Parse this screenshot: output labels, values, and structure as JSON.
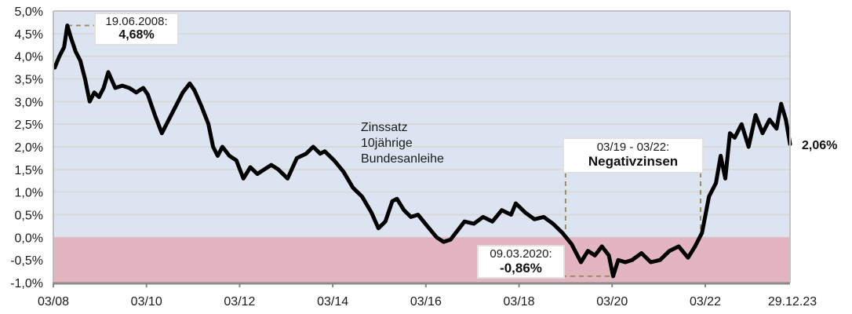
{
  "chart_data": {
    "type": "line",
    "title": "",
    "series_label": [
      "Zinssatz",
      "10jährige",
      "Bundesanleihe"
    ],
    "xlabel": "",
    "ylabel": "",
    "ylim": [
      -1.0,
      5.0
    ],
    "yticks": [
      "5,0%",
      "4,5%",
      "4,0%",
      "3,5%",
      "3,0%",
      "2,5%",
      "2,0%",
      "1,5%",
      "1,0%",
      "0,5%",
      "0,0%",
      "-0,5%",
      "-1,0%"
    ],
    "xticks": [
      "03/08",
      "03/10",
      "03/12",
      "03/14",
      "03/16",
      "03/18",
      "03/20",
      "03/22",
      "29.12.23"
    ],
    "grid": true,
    "negative_zone": {
      "from": 0.0,
      "to": -1.0,
      "color": "#e3b5c0"
    },
    "positive_zone_color": "#dbe4f0",
    "series": [
      {
        "name": "Zinssatz 10jährige Bundesanleihe",
        "color": "#000000",
        "x": [
          2008.2,
          2008.3,
          2008.4,
          2008.47,
          2008.55,
          2008.65,
          2008.75,
          2008.85,
          2008.95,
          2009.05,
          2009.15,
          2009.25,
          2009.35,
          2009.5,
          2009.65,
          2009.8,
          2009.95,
          2010.1,
          2010.2,
          2010.35,
          2010.5,
          2010.65,
          2010.8,
          2010.95,
          2011.1,
          2011.2,
          2011.35,
          2011.5,
          2011.6,
          2011.7,
          2011.8,
          2011.95,
          2012.1,
          2012.25,
          2012.4,
          2012.55,
          2012.7,
          2012.85,
          2013.0,
          2013.2,
          2013.4,
          2013.6,
          2013.75,
          2013.9,
          2014.0,
          2014.2,
          2014.4,
          2014.6,
          2014.8,
          2015.0,
          2015.15,
          2015.3,
          2015.45,
          2015.55,
          2015.7,
          2015.85,
          2016.0,
          2016.2,
          2016.4,
          2016.55,
          2016.7,
          2016.85,
          2017.0,
          2017.2,
          2017.4,
          2017.6,
          2017.8,
          2018.0,
          2018.1,
          2018.3,
          2018.5,
          2018.7,
          2018.9,
          2019.1,
          2019.3,
          2019.5,
          2019.65,
          2019.8,
          2019.95,
          2020.1,
          2020.19,
          2020.3,
          2020.45,
          2020.6,
          2020.8,
          2021.0,
          2021.2,
          2021.4,
          2021.6,
          2021.8,
          2021.95,
          2022.1,
          2022.25,
          2022.4,
          2022.5,
          2022.6,
          2022.7,
          2022.8,
          2022.95,
          2023.1,
          2023.25,
          2023.4,
          2023.55,
          2023.7,
          2023.8,
          2023.9,
          2023.99
        ],
        "y": [
          3.75,
          4.0,
          4.2,
          4.68,
          4.4,
          4.1,
          3.9,
          3.5,
          3.0,
          3.2,
          3.1,
          3.3,
          3.65,
          3.3,
          3.35,
          3.3,
          3.2,
          3.3,
          3.15,
          2.7,
          2.3,
          2.6,
          2.9,
          3.2,
          3.4,
          3.25,
          2.9,
          2.5,
          2.0,
          1.8,
          2.0,
          1.8,
          1.7,
          1.3,
          1.55,
          1.4,
          1.5,
          1.6,
          1.5,
          1.3,
          1.75,
          1.85,
          2.0,
          1.85,
          1.9,
          1.7,
          1.45,
          1.1,
          0.9,
          0.55,
          0.2,
          0.35,
          0.8,
          0.85,
          0.6,
          0.45,
          0.5,
          0.25,
          0.0,
          -0.1,
          -0.05,
          0.15,
          0.35,
          0.3,
          0.45,
          0.35,
          0.6,
          0.5,
          0.75,
          0.55,
          0.4,
          0.45,
          0.3,
          0.1,
          -0.15,
          -0.55,
          -0.3,
          -0.4,
          -0.2,
          -0.4,
          -0.86,
          -0.5,
          -0.55,
          -0.5,
          -0.35,
          -0.55,
          -0.5,
          -0.3,
          -0.2,
          -0.45,
          -0.2,
          0.1,
          0.9,
          1.2,
          1.8,
          1.3,
          2.3,
          2.2,
          2.5,
          2.0,
          2.7,
          2.3,
          2.6,
          2.4,
          2.95,
          2.6,
          2.06
        ]
      }
    ],
    "annotations": [
      {
        "date": "19.06.2008:",
        "value": "4,68%",
        "x": 2008.47,
        "y": 4.68
      },
      {
        "date": "09.03.2020:",
        "value": "-0,86%",
        "x": 2020.19,
        "y": -0.86
      },
      {
        "date": "03/19 - 03/22:",
        "value": "Negativzinsen",
        "x_from": 2019.17,
        "x_to": 2022.17
      }
    ],
    "end_value": "2,06%"
  }
}
